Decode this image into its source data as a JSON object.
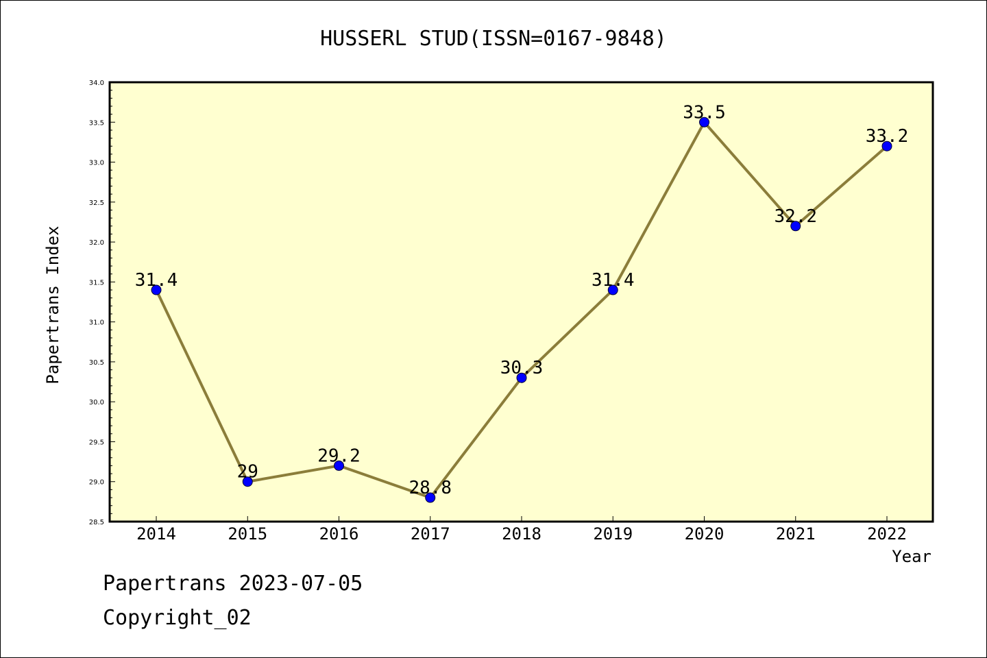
{
  "chart_data": {
    "type": "line",
    "title": "HUSSERL STUD(ISSN=0167-9848)",
    "xlabel": "Year",
    "ylabel": "Papertrans Index",
    "categories": [
      "2014",
      "2015",
      "2016",
      "2017",
      "2018",
      "2019",
      "2020",
      "2021",
      "2022"
    ],
    "series": [
      {
        "values": [
          31.4,
          29,
          29.2,
          28.8,
          30.3,
          31.4,
          33.5,
          32.2,
          33.2
        ],
        "labels": [
          "31.4",
          "29",
          "29.2",
          "28.8",
          "30.3",
          "31.4",
          "33.5",
          "32.2",
          "33.2"
        ]
      }
    ],
    "ylim": [
      28.5,
      34.0
    ],
    "yticks": [
      "28.5",
      "29.0",
      "29.5",
      "30.0",
      "30.5",
      "31.0",
      "31.5",
      "32.0",
      "32.5",
      "33.0",
      "33.5",
      "34.0"
    ],
    "grid": false,
    "colors": {
      "plot_background": "#ffffd0",
      "line": "#8b7d3a",
      "marker": "#0000ff"
    }
  },
  "footer": {
    "line1": "Papertrans 2023-07-05",
    "line2": "Copyright_02"
  }
}
